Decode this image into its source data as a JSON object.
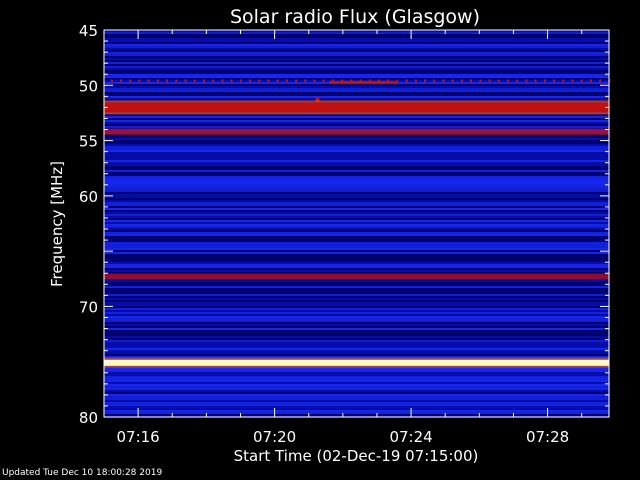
{
  "chart_data": {
    "type": "heatmap",
    "title": "Solar radio Flux (Glasgow)",
    "xlabel": "Start Time (02-Dec-19 07:15:00)",
    "ylabel": "Frequency [MHz]",
    "x_ticks": [
      "07:16",
      "07:20",
      "07:24",
      "07:28"
    ],
    "x_tick_minutes": [
      1,
      5,
      9,
      13
    ],
    "xlim_minutes": [
      0,
      14.8
    ],
    "y_ticks": [
      45,
      50,
      55,
      60,
      70,
      80
    ],
    "ylim": [
      45,
      80
    ],
    "colors": {
      "background": "#000000",
      "low": "#00007a",
      "mid": "#1a2cff",
      "high": "#c01010",
      "peak": "#fff8c0"
    },
    "bands": [
      {
        "freq": 49.6,
        "intensity": "high",
        "kind": "dotted"
      },
      {
        "freq": 51.3,
        "intensity": "high",
        "kind": "point",
        "minute": 6.2
      },
      {
        "freq": 52.0,
        "intensity": "high",
        "kind": "strong"
      },
      {
        "freq": 54.2,
        "intensity": "high",
        "kind": "moderate"
      },
      {
        "freq": 67.3,
        "intensity": "high",
        "kind": "moderate"
      },
      {
        "freq": 75.1,
        "intensity": "peak",
        "kind": "strong"
      }
    ]
  },
  "footer": "Updated Tue Dec 10 18:00:28 2019"
}
